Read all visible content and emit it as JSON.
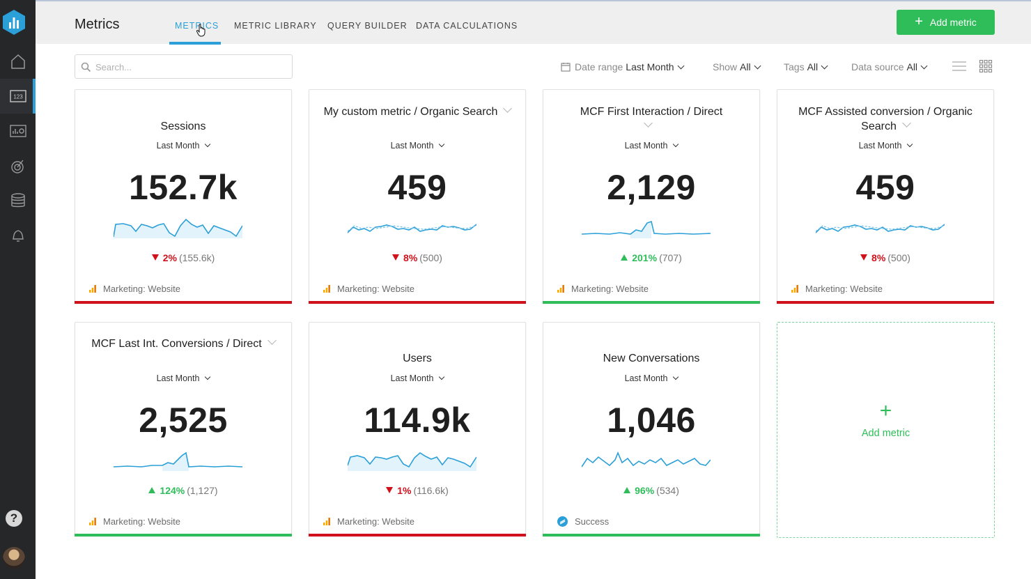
{
  "header": {
    "page_title": "Metrics",
    "tabs": [
      {
        "label": "METRICS",
        "active": true
      },
      {
        "label": "METRIC LIBRARY",
        "active": false
      },
      {
        "label": "QUERY BUILDER",
        "active": false
      },
      {
        "label": "DATA CALCULATIONS",
        "active": false
      }
    ],
    "add_button_label": "Add metric"
  },
  "sidebar": {
    "items": [
      "home-icon",
      "metrics-123-icon",
      "dashboard-icon",
      "goals-target-icon",
      "data-sources-database-icon",
      "alerts-bell-icon"
    ],
    "active_item": "metrics-123-icon",
    "help_label": "?"
  },
  "toolbar": {
    "search_placeholder": "Search...",
    "filters": [
      {
        "label": "Date range",
        "value": "Last Month"
      },
      {
        "label": "Show",
        "value": "All"
      },
      {
        "label": "Tags",
        "value": "All"
      },
      {
        "label": "Data source",
        "value": "All"
      }
    ]
  },
  "colors": {
    "accent": "#2a9fd8",
    "green": "#2ebd59",
    "red": "#d0111b",
    "sidebar": "#262729"
  },
  "cards": [
    {
      "title": "Sessions",
      "period": "Last Month",
      "value": "152.7k",
      "direction": "down",
      "change": "2%",
      "previous": "(155.6k)",
      "source": "Marketing: Website",
      "status": "red"
    },
    {
      "title": "My custom metric / Organic Search",
      "period": "Last Month",
      "value": "459",
      "direction": "down",
      "change": "8%",
      "previous": "(500)",
      "source": "Marketing: Website",
      "status": "red"
    },
    {
      "title": "MCF First Interaction / Direct",
      "period": "Last Month",
      "value": "2,129",
      "direction": "up",
      "change": "201%",
      "previous": "(707)",
      "source": "Marketing: Website",
      "status": "green"
    },
    {
      "title": "MCF Assisted conversion / Organic Search",
      "period": "Last Month",
      "value": "459",
      "direction": "down",
      "change": "8%",
      "previous": "(500)",
      "source": "Marketing: Website",
      "status": "red"
    },
    {
      "title": "MCF Last Int. Conversions / Direct",
      "period": "Last Month",
      "value": "2,525",
      "direction": "up",
      "change": "124%",
      "previous": "(1,127)",
      "source": "Marketing: Website",
      "status": "green"
    },
    {
      "title": "Users",
      "period": "Last Month",
      "value": "114.9k",
      "direction": "down",
      "change": "1%",
      "previous": "(116.6k)",
      "source": "Marketing: Website",
      "status": "red"
    },
    {
      "title": "New Conversations",
      "period": "Last Month",
      "value": "1,046",
      "direction": "up",
      "change": "96%",
      "previous": "(534)",
      "source": "Success",
      "status": "green"
    }
  ],
  "add_card": {
    "plus": "+",
    "label": "Add metric"
  }
}
